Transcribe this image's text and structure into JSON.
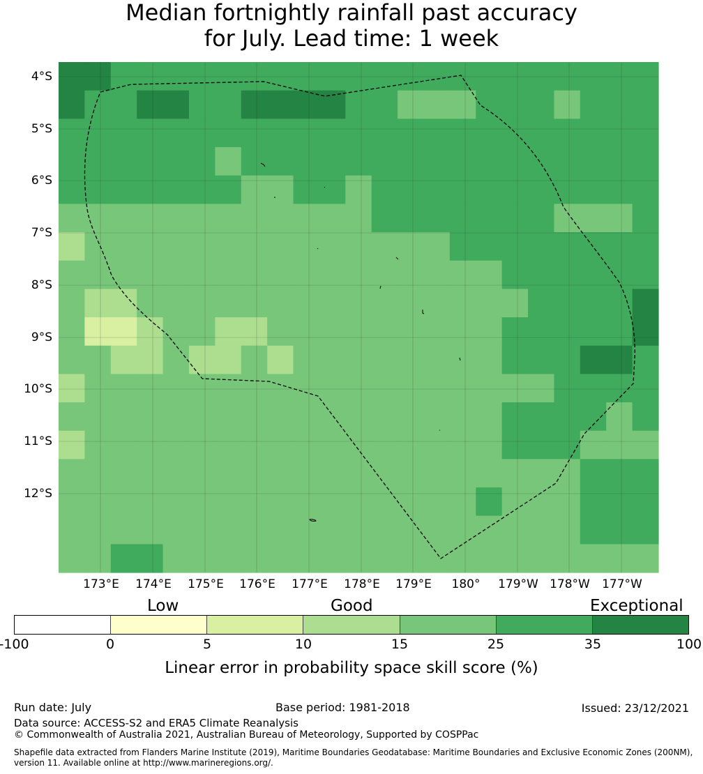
{
  "title_line1": "Median fortnightly rainfall past accuracy",
  "title_line2": "for July. Lead time: 1 week",
  "lat_labels": [
    "4°S",
    "5°S",
    "6°S",
    "7°S",
    "8°S",
    "9°S",
    "10°S",
    "11°S",
    "12°S"
  ],
  "lon_labels": [
    "173°E",
    "174°E",
    "175°E",
    "176°E",
    "177°E",
    "178°E",
    "179°E",
    "180°",
    "179°W",
    "178°W",
    "177°W"
  ],
  "legend": {
    "categories": [
      "Low",
      "Good",
      "Exceptional"
    ],
    "ticks": [
      "-100",
      "0",
      "5",
      "10",
      "15",
      "25",
      "35",
      "100"
    ],
    "colors": [
      "#ffffff",
      "#ffffcc",
      "#d9f0a3",
      "#addd8e",
      "#78c679",
      "#41ab5d",
      "#238443"
    ],
    "title": "Linear error in probability space skill score (%)"
  },
  "footer": {
    "run_date": "Run date: July",
    "base_period": "Base period: 1981-2018",
    "issued": "Issued: 23/12/2021",
    "data_source": "Data source: ACCESS-S2 and ERA5 Climate Reanalysis",
    "copyright": "© Commonwealth of Australia 2021, Australian Bureau of Meteorology, Supported by COSPPac",
    "shapefile": "Shapefile data extracted from Flanders Marine Institute (2019), Maritime Boundaries Geodatabase: Maritime Boundaries and Exclusive Economic Zones (200NM), version 11. Available online at http://www.marineregions.org/."
  },
  "grid_classes": [
    "55444444444444444444444",
    "54455445555443334443444",
    "44444444444444444444444",
    "44444434444444444444444",
    "44444443344344444444444",
    "33333333333344444443334",
    "23333333333333344444444",
    "33333333333333333444444",
    "32233333333333333344445",
    "31123322333333333444445",
    "33223223233333333444554",
    "23333333333333333334444",
    "33333333333333333444434",
    "23333333333333333444333",
    "33333333333333333333444",
    "33333333333333334333444",
    "33333333333333333333444",
    "33443333333333333333333"
  ]
}
